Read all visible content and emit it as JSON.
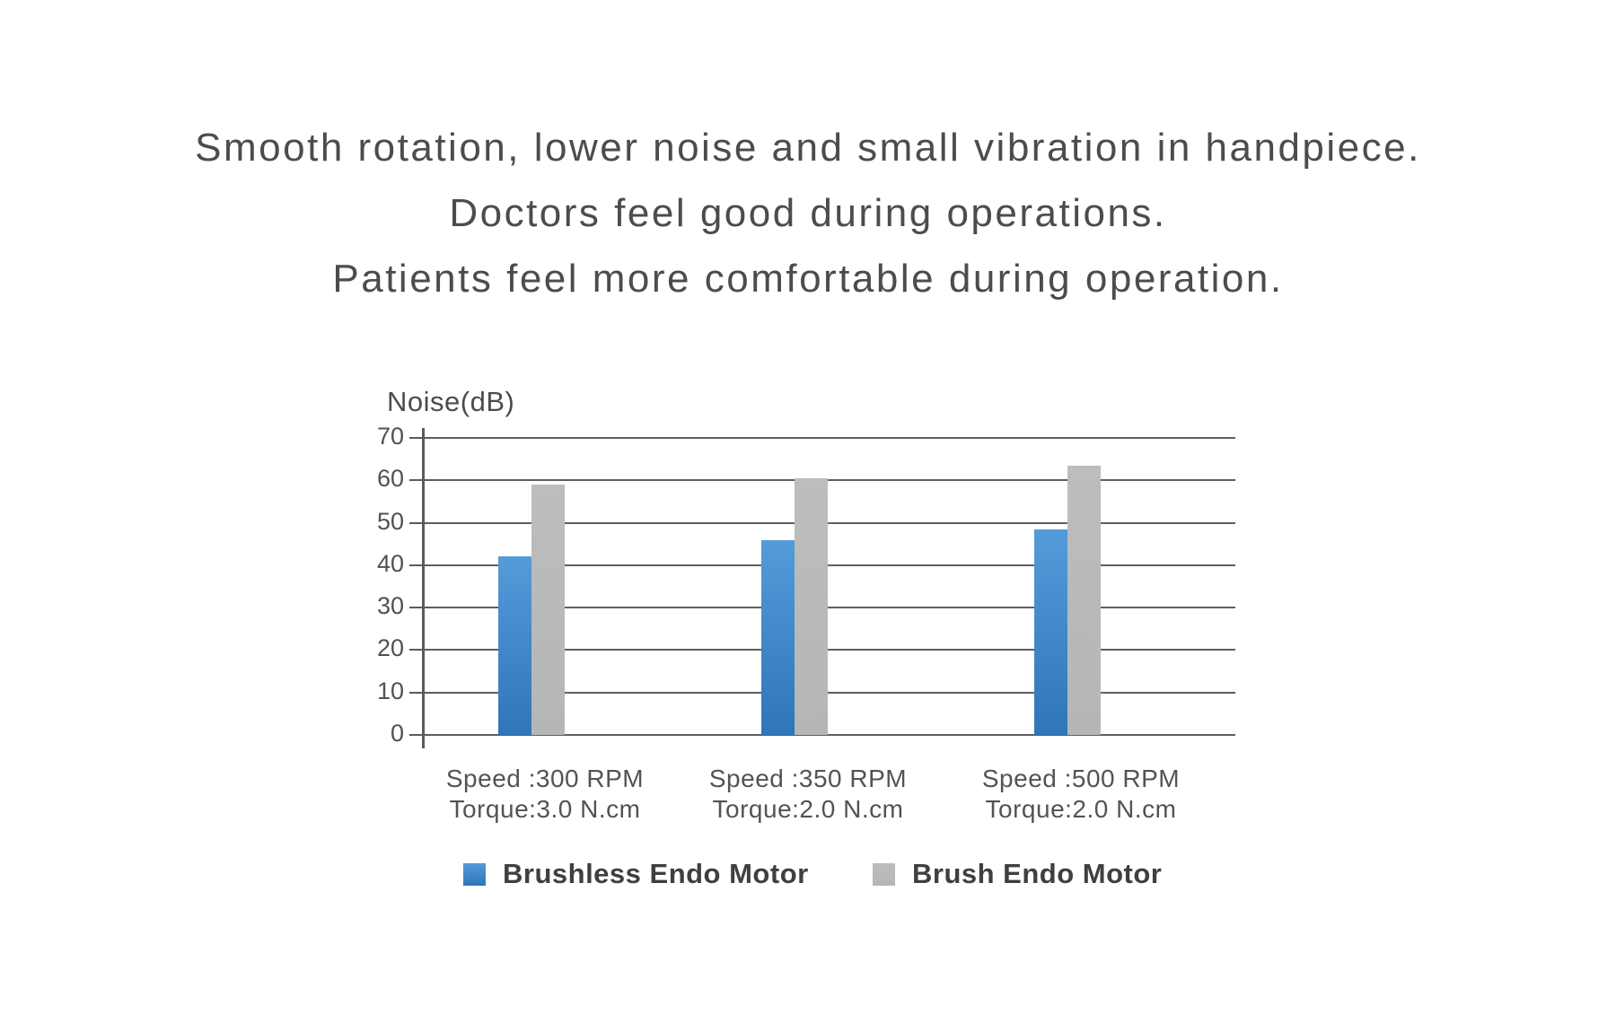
{
  "headline": {
    "lines": [
      "Smooth rotation, lower noise and small vibration in handpiece.",
      "Doctors feel good during operations.",
      "Patients feel more comfortable during operation."
    ]
  },
  "chart_data": {
    "type": "bar",
    "title": "",
    "ylabel": "Noise(dB)",
    "xlabel": "",
    "ylim": [
      0,
      70
    ],
    "yticks": [
      0,
      10,
      20,
      30,
      40,
      50,
      60,
      70
    ],
    "grid": true,
    "legend_position": "bottom",
    "categories": [
      {
        "line1": "Speed :300 RPM",
        "line2": "Torque:3.0 N.cm"
      },
      {
        "line1": "Speed :350 RPM",
        "line2": "Torque:2.0 N.cm"
      },
      {
        "line1": "Speed :500 RPM",
        "line2": "Torque:2.0 N.cm"
      }
    ],
    "series": [
      {
        "name": "Brushless Endo Motor",
        "values": [
          42,
          46,
          48.5
        ],
        "color": "#2f76b8",
        "color_light": "#549bda"
      },
      {
        "name": "Brush Endo Motor",
        "values": [
          59,
          60.5,
          63.5
        ],
        "color": "#b5b6b7",
        "color_light": "#bcbdbe"
      }
    ]
  },
  "colors": {
    "grid": "#5d6062",
    "axis": "#595c5e",
    "headline_text": "#4c4c4c",
    "legend_text": "#3f3f3f",
    "background": "#ffffff"
  }
}
